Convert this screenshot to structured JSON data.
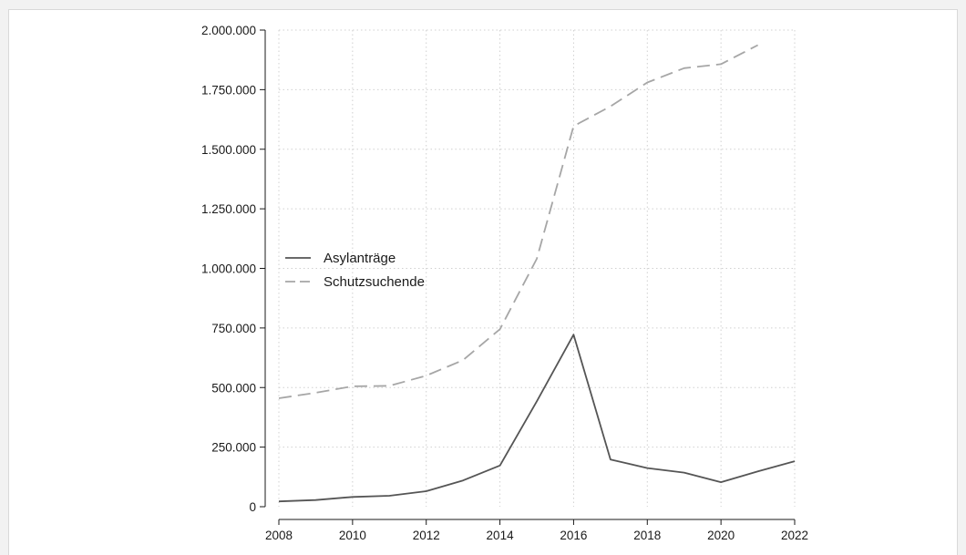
{
  "chart_data": {
    "type": "line",
    "title": "",
    "xlabel": "",
    "ylabel": "",
    "x": [
      2008,
      2009,
      2010,
      2011,
      2012,
      2013,
      2014,
      2015,
      2016,
      2017,
      2018,
      2019,
      2020,
      2021,
      2022
    ],
    "xlim": [
      2008,
      2022
    ],
    "ylim": [
      0,
      2000000
    ],
    "x_ticks": [
      2008,
      2010,
      2012,
      2014,
      2016,
      2018,
      2020,
      2022
    ],
    "x_tick_labels": [
      "2008",
      "2010",
      "2012",
      "2014",
      "2016",
      "2018",
      "2020",
      "2022"
    ],
    "y_ticks": [
      0,
      250000,
      500000,
      750000,
      1000000,
      1250000,
      1500000,
      1750000,
      2000000
    ],
    "y_tick_labels": [
      "0",
      "250.000",
      "500.000",
      "750.000",
      "1.000.000",
      "1.250.000",
      "1.500.000",
      "1.750.000",
      "2.000.000"
    ],
    "grid": true,
    "legend_position": "left",
    "series": [
      {
        "name": "Asylanträge",
        "style": "solid",
        "color": "#555555",
        "values": [
          22000,
          28000,
          41000,
          46000,
          65000,
          110000,
          173000,
          442000,
          722000,
          198000,
          162000,
          143000,
          103000,
          148000,
          191000
        ]
      },
      {
        "name": "Schutzsuchende",
        "style": "dashed",
        "color": "#a6a6a6",
        "values": [
          455000,
          478000,
          505000,
          507000,
          550000,
          615000,
          745000,
          1040000,
          1597000,
          1680000,
          1780000,
          1840000,
          1857000,
          1937000,
          null
        ]
      }
    ]
  }
}
